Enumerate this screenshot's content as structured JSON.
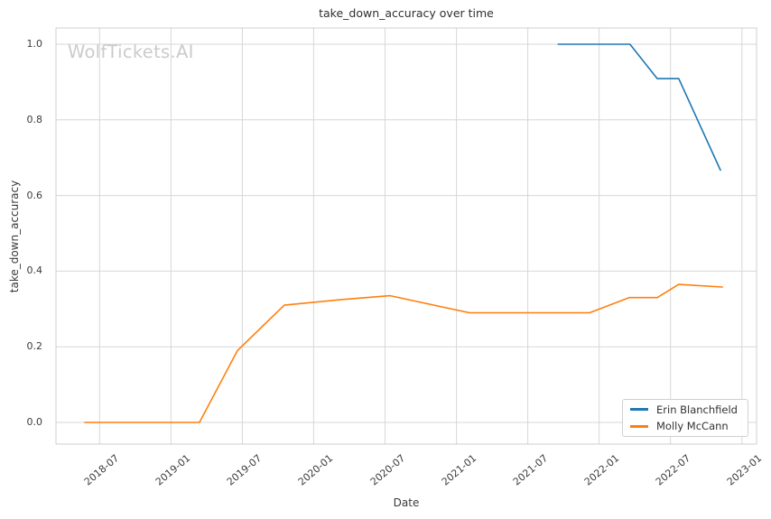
{
  "watermark": "WolfTickets.AI",
  "chart_data": {
    "type": "line",
    "title": "take_down_accuracy over time",
    "xlabel": "Date",
    "ylabel": "take_down_accuracy",
    "x_ticks": [
      "2018-07",
      "2019-01",
      "2019-07",
      "2020-01",
      "2020-07",
      "2021-01",
      "2021-07",
      "2022-01",
      "2022-07",
      "2023-01"
    ],
    "y_ticks": [
      0.0,
      0.2,
      0.4,
      0.6,
      0.8,
      1.0
    ],
    "ylim": [
      -0.05,
      1.05
    ],
    "grid": true,
    "legend_position": "lower right",
    "series": [
      {
        "name": "Erin Blanchfield",
        "color": "#1f77b4",
        "points": [
          [
            "2021-09-18",
            1.0
          ],
          [
            "2022-03-19",
            1.0
          ],
          [
            "2022-05-28",
            0.909
          ],
          [
            "2022-07-22",
            0.909
          ],
          [
            "2022-11-07",
            0.667
          ]
        ]
      },
      {
        "name": "Molly McCann",
        "color": "#ff7f0e",
        "points": [
          [
            "2018-05-24",
            0.0
          ],
          [
            "2019-03-13",
            0.0
          ],
          [
            "2019-06-19",
            0.19
          ],
          [
            "2019-10-17",
            0.31
          ],
          [
            "2020-03-14",
            0.325
          ],
          [
            "2020-07-14",
            0.335
          ],
          [
            "2021-02-04",
            0.29
          ],
          [
            "2021-12-07",
            0.29
          ],
          [
            "2022-03-17",
            0.33
          ],
          [
            "2022-05-28",
            0.33
          ],
          [
            "2022-07-22",
            0.365
          ],
          [
            "2022-11-12",
            0.358
          ]
        ]
      }
    ]
  }
}
